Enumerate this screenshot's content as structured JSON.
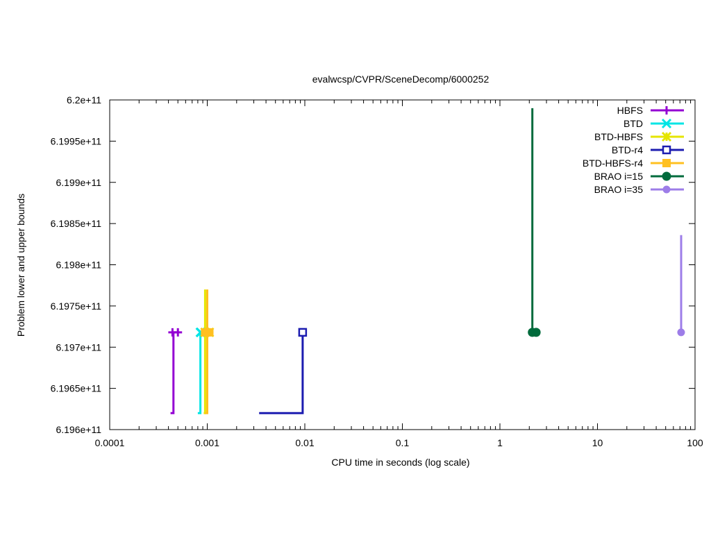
{
  "chart_data": {
    "type": "line",
    "title": "evalwcsp/CVPR/SceneDecomp/6000252",
    "xlabel": "CPU time in seconds (log scale)",
    "ylabel": "Problem lower and upper bounds",
    "x_scale": "log",
    "xlim": [
      0.0001,
      100
    ],
    "ylim": [
      619600000000,
      620000000000
    ],
    "x_ticks": [
      {
        "value": 0.0001,
        "label": "0.0001"
      },
      {
        "value": 0.001,
        "label": "0.001"
      },
      {
        "value": 0.01,
        "label": "0.01"
      },
      {
        "value": 0.1,
        "label": "0.1"
      },
      {
        "value": 1,
        "label": "1"
      },
      {
        "value": 10,
        "label": "10"
      },
      {
        "value": 100,
        "label": "100"
      }
    ],
    "y_ticks": [
      {
        "value": 619600000000,
        "label": "6.196e+11"
      },
      {
        "value": 619650000000,
        "label": "6.1965e+11"
      },
      {
        "value": 619700000000,
        "label": "6.197e+11"
      },
      {
        "value": 619750000000,
        "label": "6.1975e+11"
      },
      {
        "value": 619800000000,
        "label": "6.198e+11"
      },
      {
        "value": 619850000000,
        "label": "6.1985e+11"
      },
      {
        "value": 619900000000,
        "label": "6.199e+11"
      },
      {
        "value": 619950000000,
        "label": "6.1995e+11"
      },
      {
        "value": 620000000000,
        "label": "6.2e+11"
      }
    ],
    "grid": false,
    "legend_position": "top-right",
    "series": [
      {
        "name": "HBFS",
        "color": "#9400d3",
        "marker": "plus",
        "lower": [
          [
            0.00042,
            619620000000
          ],
          [
            0.00045,
            619620000000
          ],
          [
            0.00045,
            619718000000
          ]
        ],
        "upper": [
          [
            0.00044,
            619718000000
          ],
          [
            0.0005,
            619718000000
          ]
        ]
      },
      {
        "name": "BTD",
        "color": "#00e5e5",
        "marker": "x",
        "lower": [
          [
            0.0008,
            619620000000
          ],
          [
            0.00085,
            619620000000
          ],
          [
            0.00085,
            619718000000
          ]
        ],
        "upper": [
          [
            0.00085,
            619718000000
          ],
          [
            0.00086,
            619718000000
          ]
        ]
      },
      {
        "name": "BTD-HBFS",
        "color": "#e5e500",
        "marker": "star",
        "lower": [
          [
            0.00092,
            619620000000
          ],
          [
            0.00095,
            619620000000
          ],
          [
            0.00095,
            619770000000
          ]
        ],
        "upper": [
          [
            0.00095,
            619718000000
          ],
          [
            0.00105,
            619718000000
          ]
        ]
      },
      {
        "name": "BTD-r4",
        "color": "#1c1cb0",
        "marker": "square-open",
        "lower": [
          [
            0.0034,
            619620000000
          ],
          [
            0.0095,
            619620000000
          ],
          [
            0.0095,
            619718000000
          ]
        ],
        "upper": [
          [
            0.0095,
            619718000000
          ]
        ]
      },
      {
        "name": "BTD-HBFS-r4",
        "color": "#ffc020",
        "marker": "square",
        "lower": [
          [
            0.00095,
            619620000000
          ],
          [
            0.001,
            619620000000
          ],
          [
            0.001,
            619770000000
          ]
        ],
        "upper": [
          [
            0.00095,
            619718000000
          ],
          [
            0.00105,
            619718000000
          ]
        ]
      },
      {
        "name": "BRAO i=15",
        "color": "#006b3c",
        "marker": "circle-open",
        "lower": [
          [
            2.15,
            619718000000
          ],
          [
            2.15,
            619990000000
          ]
        ],
        "upper": [
          [
            2.15,
            619718000000
          ],
          [
            2.35,
            619718000000
          ]
        ]
      },
      {
        "name": "BRAO i=35",
        "color": "#9d7de8",
        "marker": "circle",
        "lower": [
          [
            72,
            619718000000
          ],
          [
            72,
            619836000000
          ]
        ],
        "upper": [
          [
            72,
            619718000000
          ]
        ]
      }
    ]
  }
}
